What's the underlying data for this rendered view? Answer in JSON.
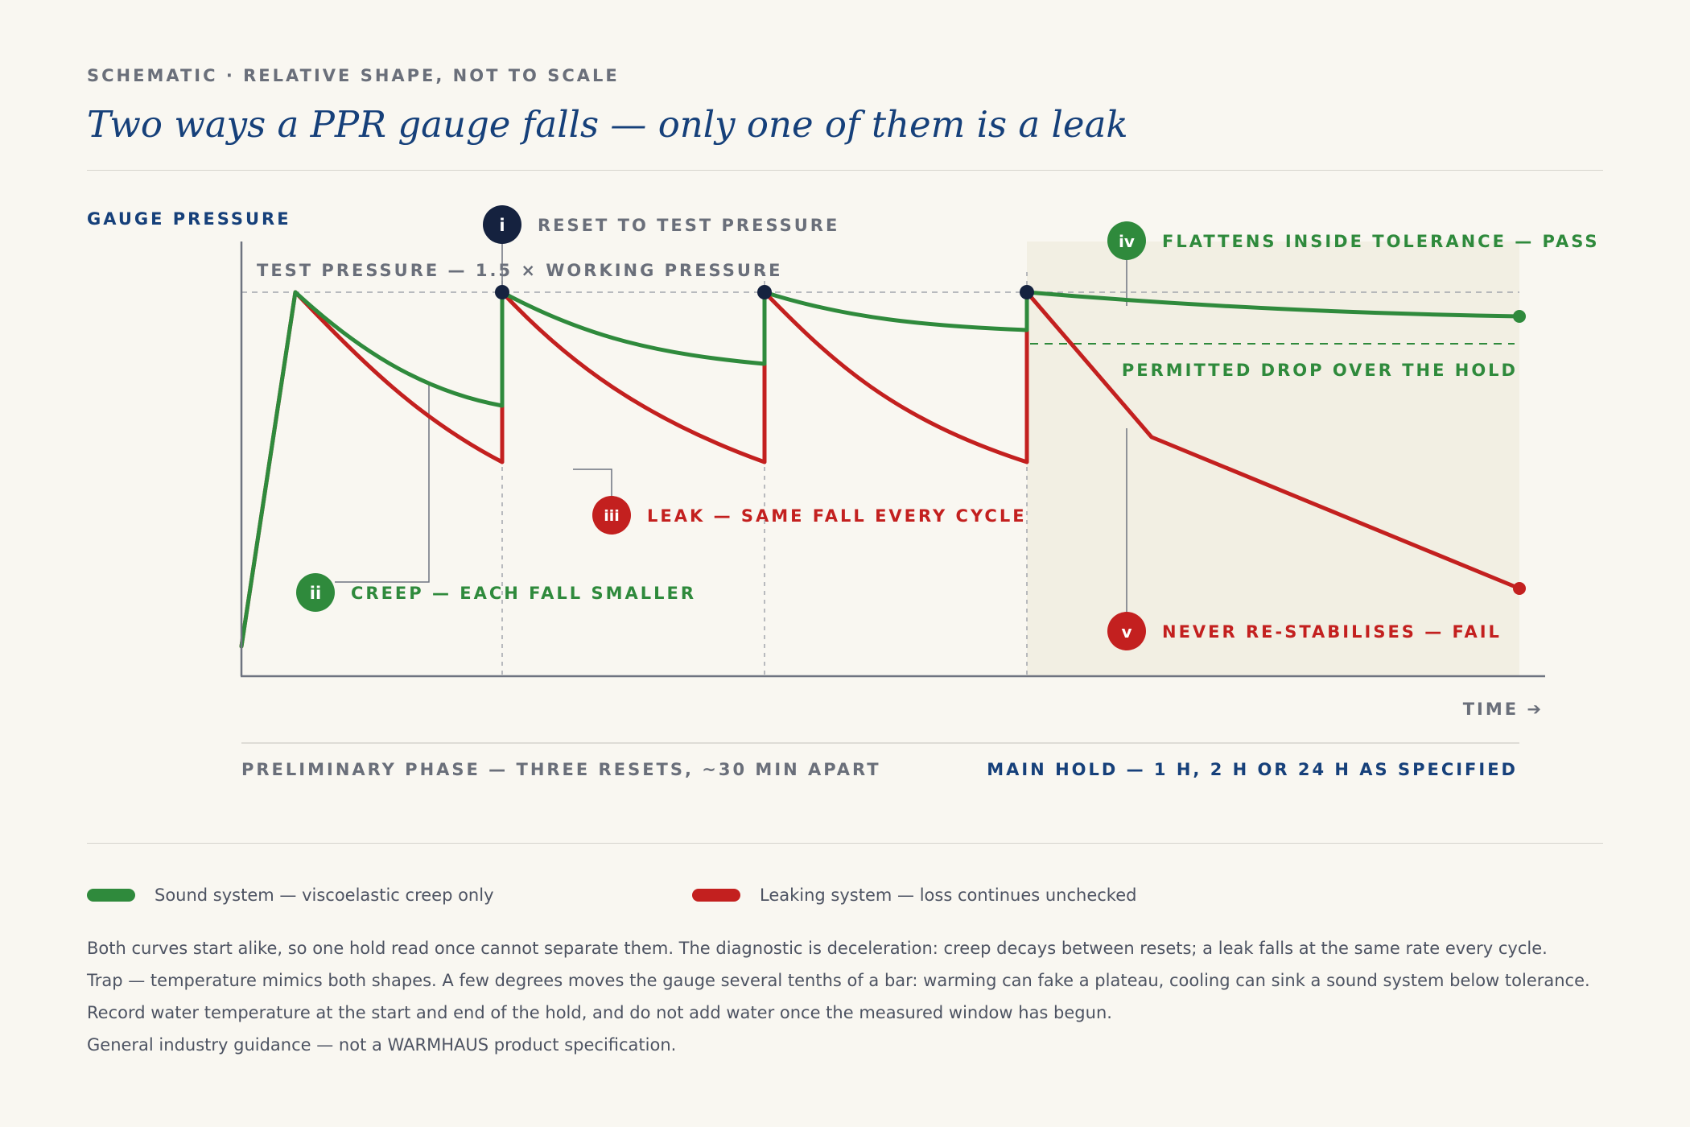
{
  "header": {
    "kicker": "SCHEMATIC · RELATIVE SHAPE, NOT TO SCALE",
    "title": "Two ways a PPR gauge falls — only one of them is a leak"
  },
  "axes": {
    "y_label": "GAUGE PRESSURE",
    "x_label": "TIME ➔",
    "test_pressure_label": "TEST PRESSURE — 1.5 × WORKING PRESSURE",
    "tolerance_label": "PERMITTED DROP OVER THE HOLD"
  },
  "phases": {
    "preliminary": "PRELIMINARY PHASE — THREE RESETS, ~30 MIN APART",
    "main_hold": "MAIN HOLD — 1 H, 2 H OR 24 H AS SPECIFIED"
  },
  "callouts": [
    {
      "marker": "i",
      "text": "RESET TO TEST PRESSURE",
      "color": "#15223f"
    },
    {
      "marker": "ii",
      "text": "CREEP — EACH FALL SMALLER",
      "color": "#2f8a3c"
    },
    {
      "marker": "iii",
      "text": "LEAK — SAME FALL EVERY CYCLE",
      "color": "#c3201f"
    },
    {
      "marker": "iv",
      "text": "FLATTENS INSIDE TOLERANCE — PASS",
      "color": "#2f8a3c"
    },
    {
      "marker": "v",
      "text": "NEVER RE-STABILISES — FAIL",
      "color": "#c3201f"
    }
  ],
  "legend": [
    {
      "label": "Sound system — viscoelastic creep only",
      "color": "#2f8a3c"
    },
    {
      "label": "Leaking system — loss continues unchecked",
      "color": "#c3201f"
    }
  ],
  "notes": [
    "Both curves start alike, so one hold read once cannot separate them. The diagnostic is deceleration: creep decays between resets; a leak falls at the same rate every cycle.",
    "Trap — temperature mimics both shapes. A few degrees moves the gauge several tenths of a bar: warming can fake a plateau, cooling can sink a sound system below tolerance.",
    "Record water temperature at the start and end of the hold, and do not add water once the measured window has begun.",
    "General industry guidance — not a WARMHAUS product specification."
  ],
  "colors": {
    "sound": "#2f8a3c",
    "leak": "#c3201f",
    "reset_marker": "#15223f",
    "axis": "#6e7380",
    "hold_shading": "#f2efe3",
    "navy": "#16407a"
  }
}
